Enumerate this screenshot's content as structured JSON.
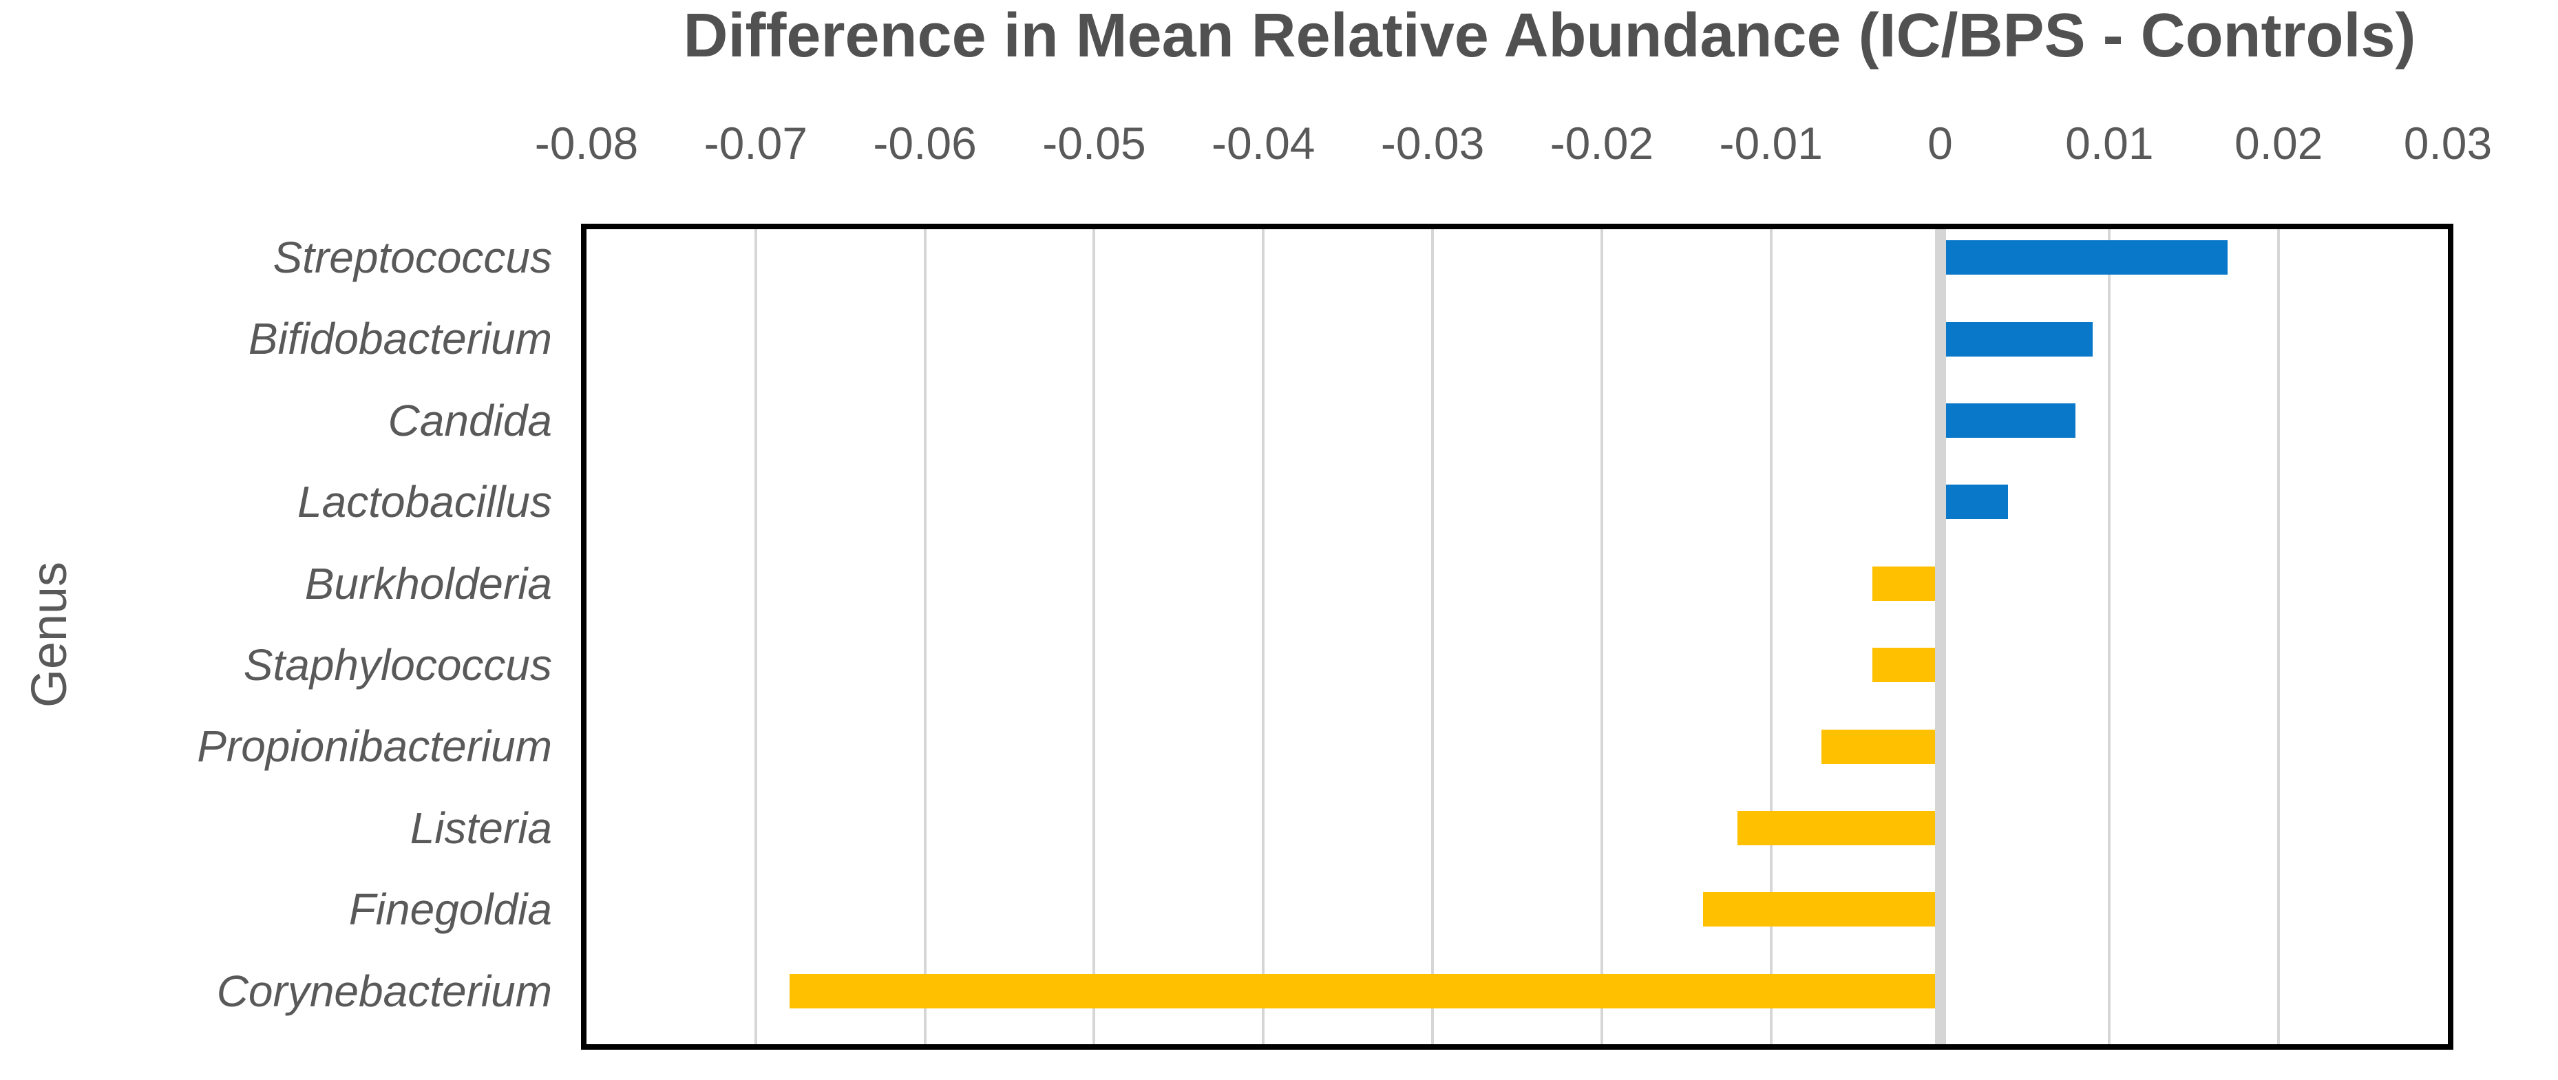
{
  "chart_data": {
    "type": "bar",
    "orientation": "horizontal",
    "title": "Difference in Mean Relative Abundance (IC/BPS - Controls)",
    "ylabel": "Genus",
    "xlabel": "",
    "categories": [
      "Streptococcus",
      "Bifidobacterium",
      "Candida",
      "Lactobacillus",
      "Burkholderia",
      "Staphylococcus",
      "Propionibacterium",
      "Listeria",
      "Finegoldia",
      "Corynebacterium"
    ],
    "values": [
      0.017,
      0.009,
      0.008,
      0.004,
      -0.004,
      -0.004,
      -0.007,
      -0.012,
      -0.014,
      -0.068
    ],
    "xlim": [
      -0.08,
      0.03
    ],
    "xtick_labels": [
      "-0.08",
      "-0.07",
      "-0.06",
      "-0.05",
      "-0.04",
      "-0.03",
      "-0.02",
      "-0.01",
      "0",
      "0.01",
      "0.02",
      "0.03"
    ],
    "grid": true,
    "legend": "none",
    "colors": {
      "positive_bar": "#0A78C8",
      "negative_bar": "#FFC000",
      "gridline": "#D6D6D6",
      "zero_line": "#D5D5D5",
      "plot_border": "#000000",
      "text": "#595959"
    }
  }
}
